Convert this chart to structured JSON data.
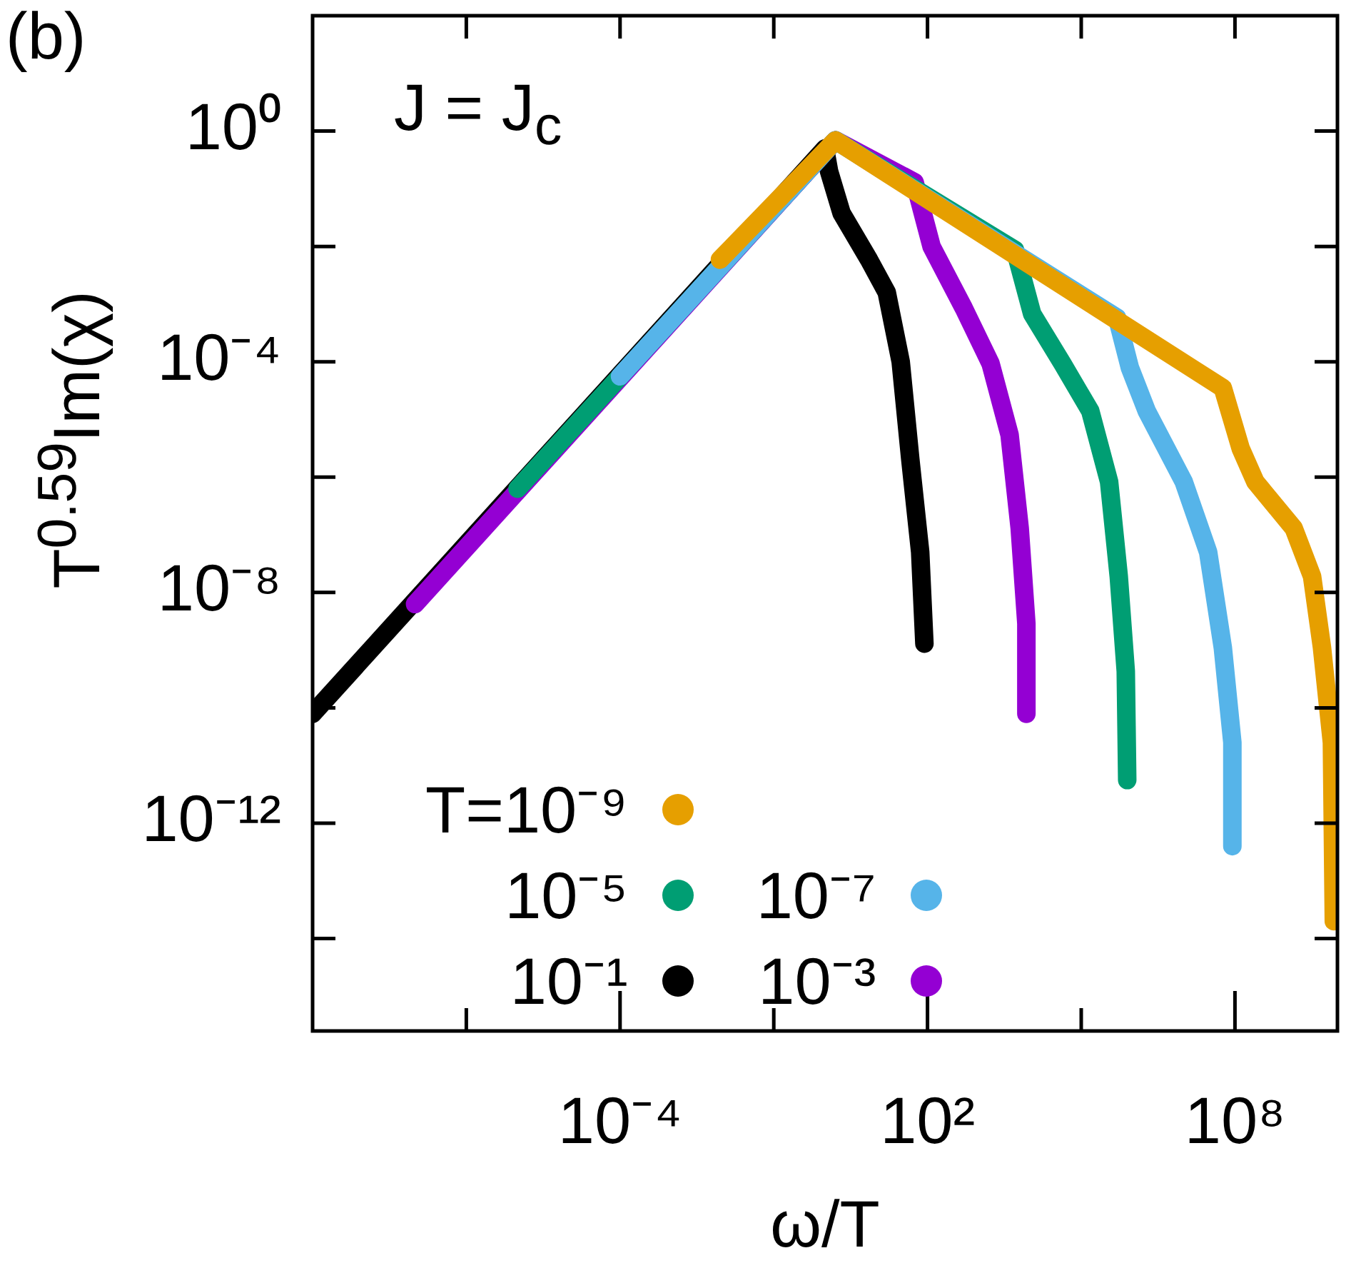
{
  "chart_data": {
    "type": "line",
    "xlabel": "ω/T",
    "ylabel": "T$^{0.59}$Im(χ)",
    "annotations": [
      "(b)",
      "J = J$_{c}$"
    ],
    "log": "xy",
    "xlim": [
      1e-10,
      10000000000.0
    ],
    "xticks": [
      {
        "value": 1e-07,
        "label": null
      },
      {
        "value": 0.0001,
        "label": "10⁻⁴"
      },
      {
        "value": 0.1,
        "label": null
      },
      {
        "value": 100.0,
        "label": "10²"
      },
      {
        "value": 100000.0,
        "label": null
      },
      {
        "value": 100000000.0,
        "label": "10⁸"
      }
    ],
    "ylim": [
      2.5e-16,
      100.0
    ],
    "yticks": [
      {
        "value": 1e-14,
        "label": null
      },
      {
        "value": 1e-12,
        "label": "10⁻¹²"
      },
      {
        "value": 1e-10,
        "label": null
      },
      {
        "value": 1e-08,
        "label": "10⁻⁸"
      },
      {
        "value": 1e-06,
        "label": null
      },
      {
        "value": 0.0001,
        "label": "10⁻⁴"
      },
      {
        "value": 0.01,
        "label": null
      },
      {
        "value": 1,
        "label": "10⁰"
      }
    ],
    "legend": "bottom",
    "series": [
      {
        "name": "T=10⁻⁹",
        "color": "#e69f00",
        "x": [
          0.0089,
          1.6,
          58000000.0,
          130000000.0,
          250000000.0,
          1400000000.0,
          3200000000.0,
          5000000000.0,
          7800000000.0,
          8500000000.0
        ],
        "values": [
          0.0059,
          0.69,
          3.5e-05,
          3.1e-06,
          8.3e-07,
          1.3e-07,
          1.9e-08,
          1.1e-09,
          2.5e-11,
          2e-14
        ]
      },
      {
        "name": "10⁻⁵",
        "color": "#009e73",
        "x": [
          1e-06,
          1.6,
          5100,
          11000,
          43000,
          150000,
          350000,
          540000,
          740000,
          790000
        ],
        "values": [
          6.3e-07,
          0.69,
          0.0087,
          0.00068,
          9.3e-05,
          1.4e-05,
          8.3e-07,
          1.9e-08,
          4.3e-10,
          5.6e-12
        ]
      },
      {
        "name": "10⁻⁷",
        "color": "#56b4e9",
        "x": [
          0.0001,
          1.6,
          500000.0,
          890000.0,
          1900000.0,
          10000000.0,
          30000000.0,
          58000000.0,
          89000000.0,
          89000000.0
        ],
        "values": [
          5.6e-05,
          0.69,
          0.00058,
          7.9e-05,
          1.4e-05,
          8.3e-07,
          5e-08,
          1.1e-09,
          2.5e-11,
          4e-13
        ]
      },
      {
        "name": "10⁻¹",
        "color": "#000000",
        "x": [
          1e-10,
          1,
          1.2,
          2.1,
          7.2,
          16,
          30,
          46,
          72,
          87
        ],
        "values": [
          7.9e-11,
          0.5,
          0.2,
          0.038,
          0.0059,
          0.0016,
          0.0001,
          2.1e-06,
          5e-08,
          1.3e-09
        ]
      },
      {
        "name": "10⁻³",
        "color": "#9400d3",
        "x": [
          1e-08,
          1.6,
          56,
          120,
          510,
          1700,
          4000,
          6300,
          8500,
          8500
        ],
        "values": [
          6.3e-09,
          0.69,
          0.13,
          0.01,
          0.00085,
          9.3e-05,
          5.4e-06,
          1.3e-07,
          2.9e-09,
          7.9e-11
        ]
      }
    ]
  }
}
